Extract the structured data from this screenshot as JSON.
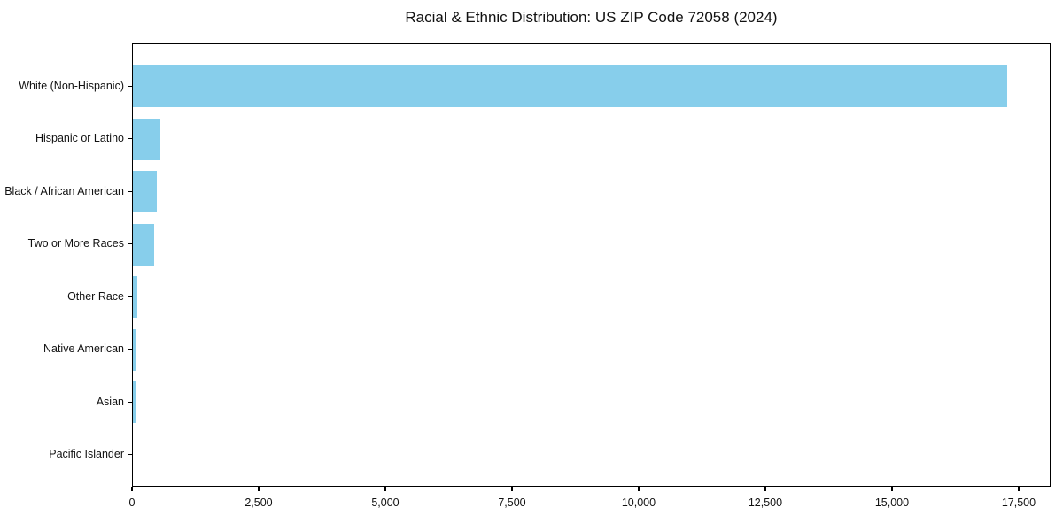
{
  "chart_data": {
    "type": "bar",
    "orientation": "horizontal",
    "title": "Racial & Ethnic Distribution: US ZIP Code 72058 (2024)",
    "categories": [
      "White (Non-Hispanic)",
      "Hispanic or Latino",
      "Black / African American",
      "Two or More Races",
      "Other Race",
      "Native American",
      "Asian",
      "Pacific Islander"
    ],
    "values": [
      17250,
      540,
      470,
      420,
      95,
      50,
      45,
      0
    ],
    "xlabel": "",
    "ylabel": "",
    "xlim": [
      0,
      18130
    ],
    "x_ticks": [
      0,
      2500,
      5000,
      7500,
      10000,
      12500,
      15000,
      17500
    ],
    "x_tick_labels": [
      "0",
      "2,500",
      "5,000",
      "7,500",
      "10,000",
      "12,500",
      "15,000",
      "17,500"
    ],
    "bar_color": "#87CEEB",
    "grid": false,
    "legend": "none",
    "background_color": "#ffffff",
    "spine_color": "#000000",
    "text_color": "#111111"
  }
}
